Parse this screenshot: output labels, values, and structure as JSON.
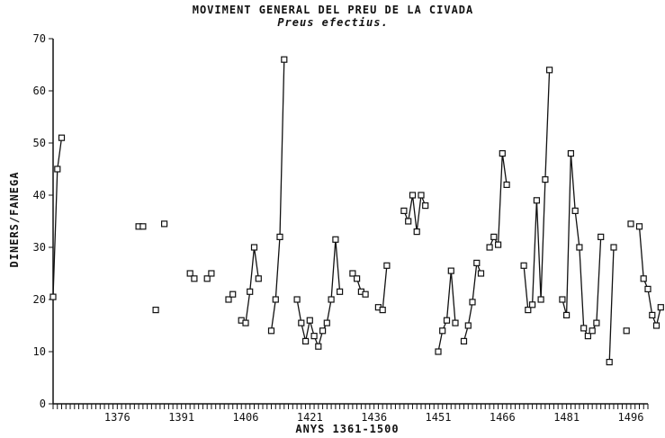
{
  "chart_data": {
    "type": "line",
    "title": "MOVIMENT GENERAL DEL PREU DE LA CIVADA",
    "subtitle": "Preus efectius.",
    "xlabel": "ANYS 1361-1500",
    "ylabel": "DINERS/FANEGA",
    "xlim": [
      1361,
      1500
    ],
    "ylim": [
      0,
      70
    ],
    "xticks": [
      1376,
      1391,
      1406,
      1421,
      1436,
      1451,
      1466,
      1481,
      1496
    ],
    "xtick_labels": [
      "1376",
      "1391",
      "1406",
      "1421",
      "1436",
      "1451",
      "1466",
      "1481",
      "1496"
    ],
    "yticks": [
      0,
      10,
      20,
      30,
      40,
      50,
      60,
      70
    ],
    "ytick_labels": [
      "0",
      "10",
      "20",
      "30",
      "40",
      "50",
      "60",
      "70"
    ],
    "grid": false,
    "legend": null,
    "color": "#111111",
    "series": [
      {
        "segments": [
          [
            [
              1361,
              20.5
            ],
            [
              1362,
              45
            ],
            [
              1363,
              51
            ]
          ],
          [
            [
              1381,
              34
            ],
            [
              1382,
              34
            ]
          ],
          [
            [
              1385,
              18
            ]
          ],
          [
            [
              1387,
              34.5
            ]
          ],
          [
            [
              1393,
              25
            ],
            [
              1394,
              24
            ]
          ],
          [
            [
              1397,
              24
            ],
            [
              1398,
              25
            ]
          ],
          [
            [
              1402,
              20
            ],
            [
              1403,
              21
            ]
          ],
          [
            [
              1405,
              16
            ],
            [
              1406,
              15.5
            ],
            [
              1407,
              21.5
            ],
            [
              1408,
              30
            ],
            [
              1409,
              24
            ]
          ],
          [
            [
              1412,
              14
            ],
            [
              1413,
              20
            ],
            [
              1414,
              32
            ],
            [
              1415,
              66
            ]
          ],
          [
            [
              1418,
              20
            ],
            [
              1419,
              15.5
            ],
            [
              1420,
              12
            ],
            [
              1421,
              16
            ],
            [
              1422,
              13
            ],
            [
              1423,
              11
            ],
            [
              1424,
              14
            ],
            [
              1425,
              15.5
            ],
            [
              1426,
              20
            ],
            [
              1427,
              31.5
            ],
            [
              1428,
              21.5
            ]
          ],
          [
            [
              1431,
              25
            ],
            [
              1432,
              24
            ],
            [
              1433,
              21.5
            ],
            [
              1434,
              21
            ]
          ],
          [
            [
              1437,
              18.5
            ],
            [
              1438,
              18
            ],
            [
              1439,
              26.5
            ]
          ],
          [
            [
              1443,
              37
            ],
            [
              1444,
              35
            ],
            [
              1445,
              40
            ],
            [
              1446,
              33
            ],
            [
              1447,
              40
            ],
            [
              1448,
              38
            ]
          ],
          [
            [
              1451,
              10
            ],
            [
              1452,
              14
            ],
            [
              1453,
              16
            ],
            [
              1454,
              25.5
            ],
            [
              1455,
              15.5
            ]
          ],
          [
            [
              1457,
              12
            ],
            [
              1458,
              15
            ],
            [
              1459,
              19.5
            ],
            [
              1460,
              27
            ],
            [
              1461,
              25
            ]
          ],
          [
            [
              1463,
              30
            ],
            [
              1464,
              32
            ],
            [
              1465,
              30.5
            ],
            [
              1466,
              48
            ],
            [
              1467,
              42
            ]
          ],
          [
            [
              1471,
              26.5
            ],
            [
              1472,
              18
            ],
            [
              1473,
              19
            ],
            [
              1474,
              39
            ],
            [
              1475,
              20
            ],
            [
              1476,
              43
            ],
            [
              1477,
              64
            ]
          ],
          [
            [
              1480,
              20
            ],
            [
              1481,
              17
            ],
            [
              1482,
              48
            ],
            [
              1483,
              37
            ],
            [
              1484,
              30
            ],
            [
              1485,
              14.5
            ],
            [
              1486,
              13
            ],
            [
              1487,
              14
            ],
            [
              1488,
              15.5
            ],
            [
              1489,
              32
            ]
          ],
          [
            [
              1491,
              8
            ],
            [
              1492,
              30
            ]
          ],
          [
            [
              1495,
              14
            ]
          ],
          [
            [
              1496,
              34.5
            ]
          ],
          [
            [
              1498,
              34
            ],
            [
              1499,
              24
            ],
            [
              1500,
              22
            ],
            [
              1501,
              17
            ],
            [
              1502,
              15
            ],
            [
              1503,
              18.5
            ]
          ]
        ]
      }
    ]
  }
}
